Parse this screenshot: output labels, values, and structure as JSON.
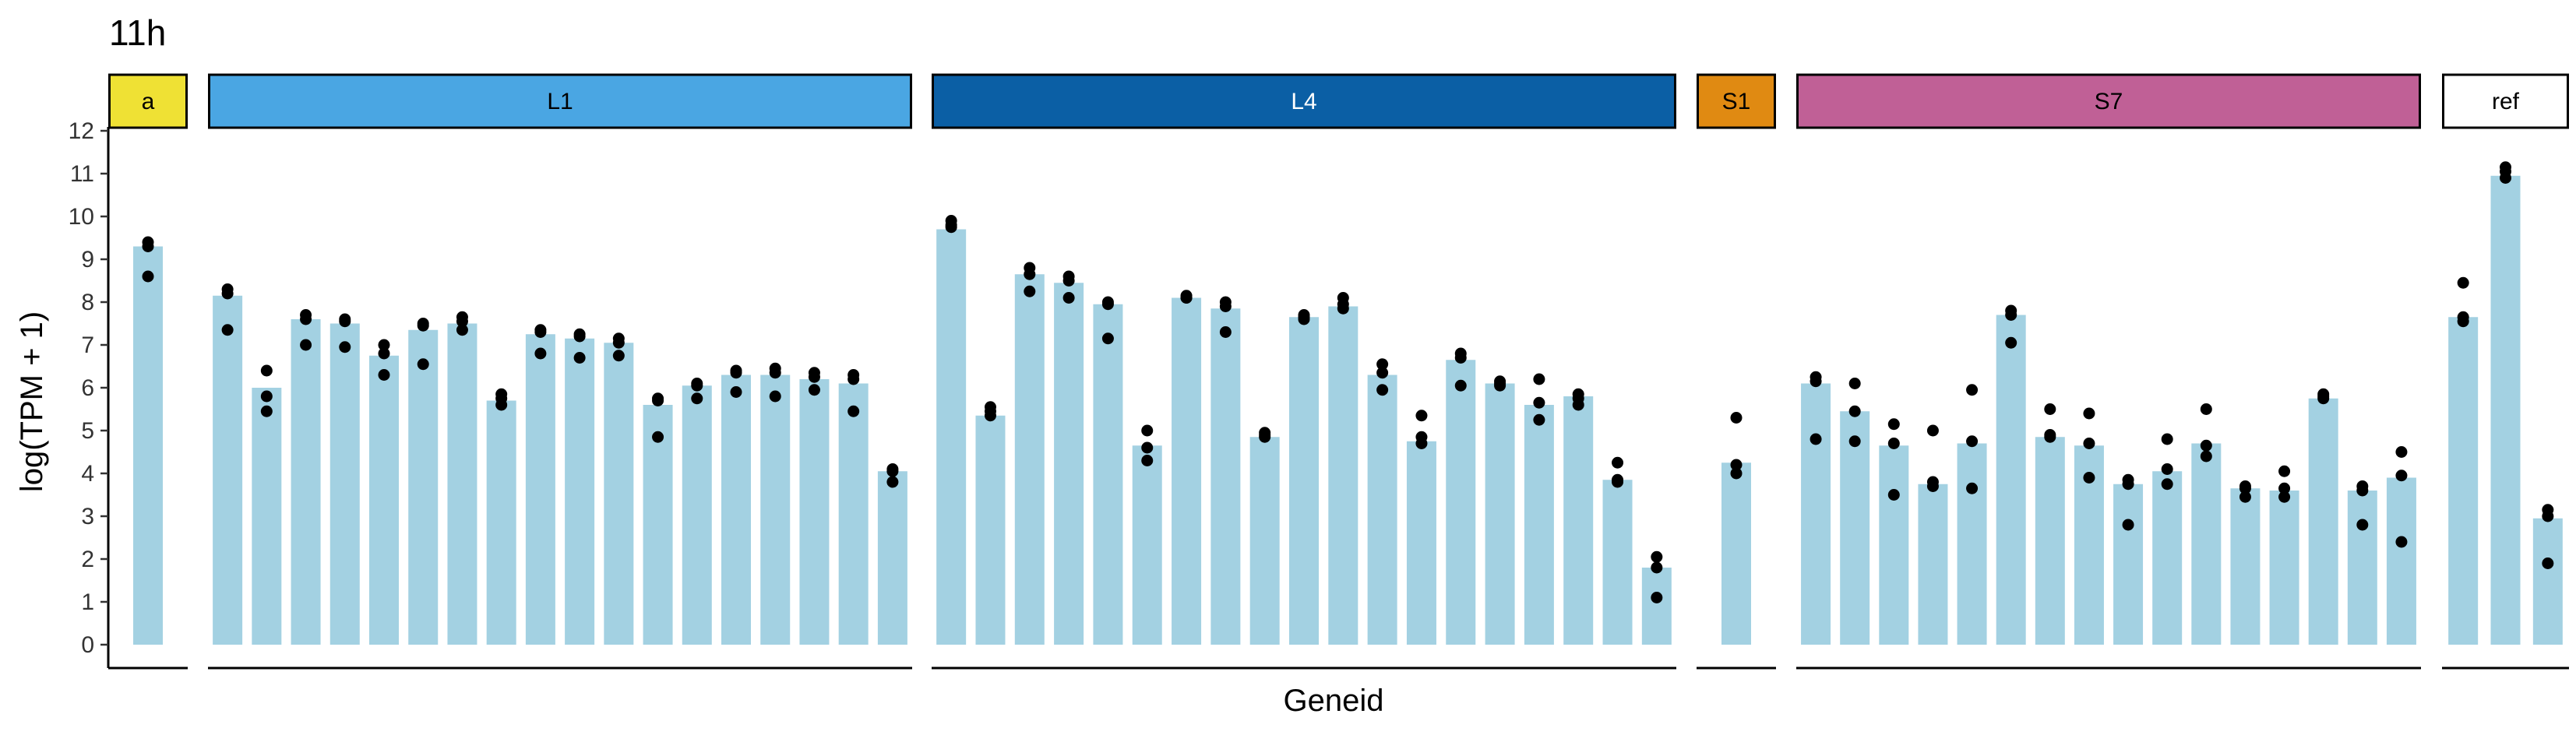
{
  "chart_data": {
    "type": "bar",
    "title": "11h",
    "xlabel": "Geneid",
    "ylabel": "log(TPM + 1)",
    "ylim": [
      0,
      12
    ],
    "yticks": [
      0,
      1,
      2,
      3,
      4,
      5,
      6,
      7,
      8,
      9,
      10,
      11,
      12
    ],
    "bar_color": "#a3d1e2",
    "point_color": "#000000",
    "grid": false,
    "panels": [
      {
        "label": "a",
        "strip_color": "#efe134",
        "text_color": "#000000",
        "bars": [
          {
            "value": 9.3,
            "points": [
              9.4,
              9.3,
              8.6
            ]
          }
        ]
      },
      {
        "label": "L1",
        "strip_color": "#4aa6e3",
        "text_color": "#000000",
        "bars": [
          {
            "value": 8.15,
            "points": [
              8.3,
              8.2,
              7.35
            ]
          },
          {
            "value": 6.0,
            "points": [
              6.4,
              5.8,
              5.45
            ]
          },
          {
            "value": 7.6,
            "points": [
              7.7,
              7.6,
              7.0
            ]
          },
          {
            "value": 7.5,
            "points": [
              7.6,
              7.55,
              6.95
            ]
          },
          {
            "value": 6.75,
            "points": [
              7.0,
              6.8,
              6.3
            ]
          },
          {
            "value": 7.35,
            "points": [
              7.5,
              7.45,
              6.55
            ]
          },
          {
            "value": 7.5,
            "points": [
              7.65,
              7.55,
              7.35
            ]
          },
          {
            "value": 5.7,
            "points": [
              5.85,
              5.75,
              5.6
            ]
          },
          {
            "value": 7.25,
            "points": [
              7.35,
              7.3,
              6.8
            ]
          },
          {
            "value": 7.15,
            "points": [
              7.25,
              7.2,
              6.7
            ]
          },
          {
            "value": 7.05,
            "points": [
              7.15,
              7.05,
              6.75
            ]
          },
          {
            "value": 5.6,
            "points": [
              5.75,
              5.7,
              4.85
            ]
          },
          {
            "value": 6.05,
            "points": [
              6.1,
              6.05,
              5.75
            ]
          },
          {
            "value": 6.3,
            "points": [
              6.4,
              6.35,
              5.9
            ]
          },
          {
            "value": 6.3,
            "points": [
              6.45,
              6.35,
              5.8
            ]
          },
          {
            "value": 6.2,
            "points": [
              6.35,
              6.25,
              5.95
            ]
          },
          {
            "value": 6.1,
            "points": [
              6.3,
              6.2,
              5.45
            ]
          },
          {
            "value": 4.05,
            "points": [
              4.1,
              4.05,
              3.8
            ]
          }
        ]
      },
      {
        "label": "L4",
        "strip_color": "#0b5fa5",
        "text_color": "#ffffff",
        "bars": [
          {
            "value": 9.7,
            "points": [
              9.9,
              9.8,
              9.75
            ]
          },
          {
            "value": 5.35,
            "points": [
              5.55,
              5.45,
              5.35
            ]
          },
          {
            "value": 8.65,
            "points": [
              8.8,
              8.65,
              8.25
            ]
          },
          {
            "value": 8.45,
            "points": [
              8.6,
              8.5,
              8.1
            ]
          },
          {
            "value": 7.95,
            "points": [
              8.0,
              7.95,
              7.15
            ]
          },
          {
            "value": 4.65,
            "points": [
              5.0,
              4.6,
              4.3
            ]
          },
          {
            "value": 8.1,
            "points": [
              8.15,
              8.1,
              8.1
            ]
          },
          {
            "value": 7.85,
            "points": [
              8.0,
              7.9,
              7.3
            ]
          },
          {
            "value": 4.85,
            "points": [
              4.95,
              4.9,
              4.85
            ]
          },
          {
            "value": 7.65,
            "points": [
              7.7,
              7.65,
              7.6
            ]
          },
          {
            "value": 7.9,
            "points": [
              8.1,
              7.95,
              7.85
            ]
          },
          {
            "value": 6.3,
            "points": [
              6.55,
              6.35,
              5.95
            ]
          },
          {
            "value": 4.75,
            "points": [
              5.35,
              4.85,
              4.7
            ]
          },
          {
            "value": 6.65,
            "points": [
              6.8,
              6.7,
              6.05
            ]
          },
          {
            "value": 6.1,
            "points": [
              6.15,
              6.1,
              6.05
            ]
          },
          {
            "value": 5.6,
            "points": [
              6.2,
              5.65,
              5.25
            ]
          },
          {
            "value": 5.8,
            "points": [
              5.85,
              5.75,
              5.6
            ]
          },
          {
            "value": 3.85,
            "points": [
              4.25,
              3.85,
              3.8
            ]
          },
          {
            "value": 1.8,
            "points": [
              2.05,
              1.8,
              1.1
            ]
          }
        ]
      },
      {
        "label": "S1",
        "strip_color": "#e08a12",
        "text_color": "#000000",
        "bars": [
          {
            "value": 4.25,
            "points": [
              5.3,
              4.2,
              4.0
            ]
          }
        ]
      },
      {
        "label": "S7",
        "strip_color": "#c06096",
        "text_color": "#000000",
        "bars": [
          {
            "value": 6.1,
            "points": [
              6.25,
              6.15,
              4.8
            ]
          },
          {
            "value": 5.45,
            "points": [
              6.1,
              5.45,
              4.75
            ]
          },
          {
            "value": 4.65,
            "points": [
              5.15,
              4.7,
              3.5
            ]
          },
          {
            "value": 3.75,
            "points": [
              5.0,
              3.8,
              3.7
            ]
          },
          {
            "value": 4.7,
            "points": [
              5.95,
              4.75,
              3.65
            ]
          },
          {
            "value": 7.7,
            "points": [
              7.8,
              7.7,
              7.05
            ]
          },
          {
            "value": 4.85,
            "points": [
              5.5,
              4.9,
              4.85
            ]
          },
          {
            "value": 4.65,
            "points": [
              5.4,
              4.7,
              3.9
            ]
          },
          {
            "value": 3.75,
            "points": [
              3.85,
              3.75,
              2.8
            ]
          },
          {
            "value": 4.05,
            "points": [
              4.8,
              4.1,
              3.75
            ]
          },
          {
            "value": 4.7,
            "points": [
              5.5,
              4.65,
              4.4
            ]
          },
          {
            "value": 3.65,
            "points": [
              3.7,
              3.65,
              3.45
            ]
          },
          {
            "value": 3.6,
            "points": [
              4.05,
              3.65,
              3.45
            ]
          },
          {
            "value": 5.75,
            "points": [
              5.85,
              5.8,
              5.75
            ]
          },
          {
            "value": 3.6,
            "points": [
              3.7,
              3.6,
              2.8
            ]
          },
          {
            "value": 3.9,
            "points": [
              4.5,
              3.95,
              2.4
            ]
          }
        ]
      },
      {
        "label": "ref",
        "strip_color": "#ffffff",
        "text_color": "#000000",
        "bars": [
          {
            "value": 7.65,
            "points": [
              8.45,
              7.65,
              7.55
            ]
          },
          {
            "value": 10.95,
            "points": [
              11.15,
              11.05,
              10.9
            ]
          },
          {
            "value": 2.95,
            "points": [
              3.15,
              3.0,
              1.9
            ]
          }
        ]
      }
    ]
  }
}
